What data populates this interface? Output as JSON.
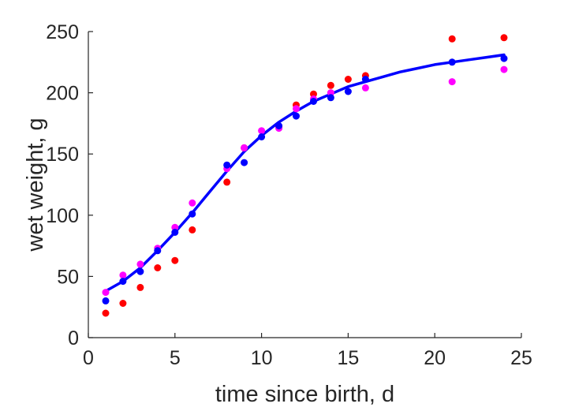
{
  "chart_data": {
    "type": "scatter",
    "title": "",
    "xlabel": "time since birth, d",
    "ylabel": "wet weight, g",
    "xlim": [
      0,
      25
    ],
    "ylim": [
      0,
      250
    ],
    "xticks": [
      "0",
      "5",
      "10",
      "15",
      "20",
      "25"
    ],
    "yticks": [
      "0",
      "50",
      "100",
      "150",
      "200",
      "250"
    ],
    "grid": false,
    "legend": "none",
    "colors": {
      "axis": "#262626",
      "red": "#ff0000",
      "magenta": "#ff00ff",
      "blue": "#0000ff",
      "fit": "#0000ff"
    },
    "series": [
      {
        "kind": "scatter",
        "color": "#ff0000",
        "points": [
          [
            1,
            20
          ],
          [
            2,
            28
          ],
          [
            3,
            41
          ],
          [
            4,
            57
          ],
          [
            5,
            63
          ],
          [
            6,
            88
          ],
          [
            8,
            127
          ],
          [
            9,
            155
          ],
          [
            11,
            172
          ],
          [
            12,
            190
          ],
          [
            13,
            199
          ],
          [
            14,
            206
          ],
          [
            15,
            211
          ],
          [
            16,
            214
          ],
          [
            21,
            244
          ],
          [
            24,
            245
          ]
        ]
      },
      {
        "kind": "scatter",
        "color": "#ff00ff",
        "points": [
          [
            1,
            37
          ],
          [
            2,
            51
          ],
          [
            3,
            60
          ],
          [
            4,
            73
          ],
          [
            5,
            90
          ],
          [
            6,
            110
          ],
          [
            8,
            138
          ],
          [
            9,
            155
          ],
          [
            10,
            169
          ],
          [
            11,
            171
          ],
          [
            12,
            187
          ],
          [
            13,
            195
          ],
          [
            14,
            200
          ],
          [
            16,
            204
          ],
          [
            21,
            209
          ],
          [
            24,
            219
          ]
        ]
      },
      {
        "kind": "scatter",
        "color": "#0000ff",
        "points": [
          [
            1,
            30
          ],
          [
            2,
            46
          ],
          [
            3,
            54
          ],
          [
            4,
            71
          ],
          [
            5,
            86
          ],
          [
            6,
            101
          ],
          [
            8,
            141
          ],
          [
            9,
            143
          ],
          [
            10,
            164
          ],
          [
            11,
            173
          ],
          [
            12,
            181
          ],
          [
            13,
            193
          ],
          [
            14,
            196
          ],
          [
            15,
            201
          ],
          [
            16,
            211
          ],
          [
            21,
            225
          ],
          [
            24,
            228
          ]
        ]
      },
      {
        "kind": "line",
        "color": "#0000ff",
        "points": [
          [
            1,
            38
          ],
          [
            2,
            46
          ],
          [
            3,
            57
          ],
          [
            4,
            71
          ],
          [
            5,
            86
          ],
          [
            6,
            102
          ],
          [
            7,
            119
          ],
          [
            8,
            136
          ],
          [
            9,
            152
          ],
          [
            10,
            165
          ],
          [
            11,
            176
          ],
          [
            12,
            185
          ],
          [
            13,
            193
          ],
          [
            14,
            199
          ],
          [
            15,
            205
          ],
          [
            16,
            209
          ],
          [
            17,
            213
          ],
          [
            18,
            217
          ],
          [
            19,
            220
          ],
          [
            20,
            223
          ],
          [
            21,
            225
          ],
          [
            22,
            227
          ],
          [
            23,
            229
          ],
          [
            24,
            231
          ]
        ]
      }
    ]
  }
}
